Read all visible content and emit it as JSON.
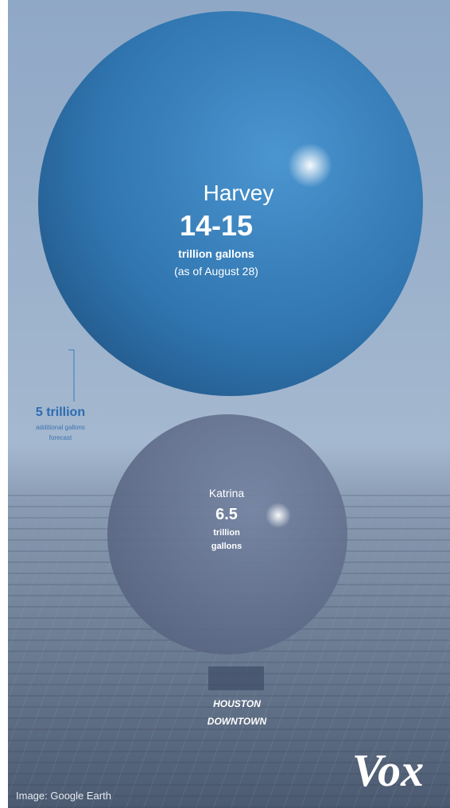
{
  "harvey": {
    "name": "Harvey",
    "amount": "14-15",
    "unit": "trillion gallons",
    "note": "(as of August 28)"
  },
  "forecast": {
    "amount": "5 trillion",
    "line1": "additional gallons",
    "line2": "forecast"
  },
  "katrina": {
    "name": "Katrina",
    "amount": "6.5",
    "unit_line1": "trillion",
    "unit_line2": "gallons"
  },
  "landmark": {
    "line1": "HOUSTON",
    "line2": "DOWNTOWN"
  },
  "logo": "Vox",
  "credit": "Image: Google Earth"
}
